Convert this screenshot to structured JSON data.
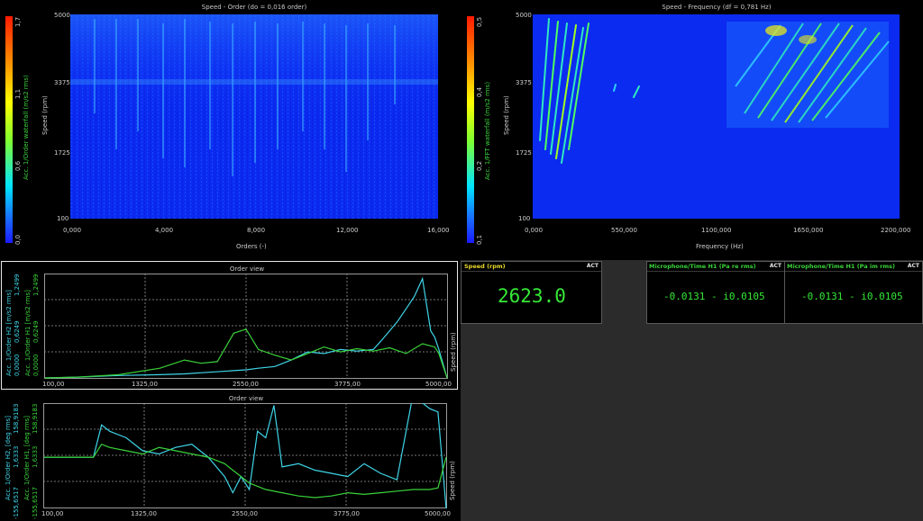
{
  "waterfall_order": {
    "title": "Speed - Order (do = 0,016 order)",
    "xlabel": "Orders (-)",
    "ylabel": "Speed (rpm)",
    "xticks": [
      "0,000",
      "4,000",
      "8,000",
      "12,000",
      "16,000"
    ],
    "yticks": [
      "5000",
      "3375",
      "1725",
      "100"
    ],
    "colorbar_label": "Acc. 1/Order waterfall (m/s2 rms)",
    "colorbar_ticks": [
      "1,7",
      "1,1",
      "0,6",
      "0,0"
    ],
    "colors": {
      "background": "#0b2bf0",
      "high": "#ff1a00"
    }
  },
  "waterfall_freq": {
    "title": "Speed - Frequency (df = 0,781 Hz)",
    "xlabel": "Frequency (Hz)",
    "ylabel": "Speed (rpm)",
    "xticks": [
      "0,000",
      "550,000",
      "1100,000",
      "1650,000",
      "2200,000"
    ],
    "yticks": [
      "5000",
      "3375",
      "1725",
      "100"
    ],
    "colorbar_label": "Acc. 1/FFT waterfall (m/s2 rms)",
    "colorbar_ticks": [
      "0,5",
      "0,4",
      "0,2",
      "0,1"
    ]
  },
  "order_view_1": {
    "title": "Order view",
    "xticks": [
      "100,00",
      "1325,00",
      "2550,00",
      "3775,00",
      "5000,00"
    ],
    "right_label": "Speed (rpm)",
    "axis_cyan": {
      "label": "Acc. 1/Order H2 [m/s2 rms]",
      "ticks": [
        "1,2499",
        "0,6249",
        "0,0000"
      ]
    },
    "axis_green": {
      "label": "Acc. 1/Order H1 [m/s2 rms]",
      "ticks": [
        "1,2499",
        "0,6249",
        "0,0000"
      ]
    }
  },
  "order_view_2": {
    "title": "Order view",
    "xticks": [
      "100,00",
      "1325,00",
      "2550,00",
      "3775,00",
      "5000,00"
    ],
    "right_label": "Speed (rpm)",
    "axis_cyan": {
      "label": "Acc. 1/Order H2, [deg rms]",
      "ticks": [
        "158,9183",
        "1,6333",
        "-155,6517"
      ]
    },
    "axis_green": {
      "label": "Acc. 1/Order H1, [deg rms]",
      "ticks": [
        "158,9183",
        "1,6333",
        "-155,6517"
      ]
    }
  },
  "speed_display": {
    "title": "Speed (rpm)",
    "badge": "ACT",
    "value": "2623.0"
  },
  "mic_re": {
    "title": "Microphone/Time H1 (Pa re rms)",
    "badge": "ACT",
    "value": "-0.0131 - i0.0105"
  },
  "mic_im": {
    "title": "Microphone/Time H1 (Pa im rms)",
    "badge": "ACT",
    "value": "-0.0131 - i0.0105"
  },
  "chart_data": [
    {
      "type": "heatmap",
      "title": "Speed - Order (do = 0,016 order)",
      "xlabel": "Orders (-)",
      "ylabel": "Speed (rpm)",
      "xlim": [
        0,
        16
      ],
      "ylim": [
        100,
        5000
      ],
      "colorbar": {
        "label": "Acc. 1/Order waterfall (m/s2 rms)",
        "range": [
          0.0,
          1.7
        ]
      },
      "bright_order_lines": [
        1,
        3,
        4,
        5,
        6,
        8,
        10,
        12,
        13
      ]
    },
    {
      "type": "heatmap",
      "title": "Speed - Frequency (df = 0,781 Hz)",
      "xlabel": "Frequency (Hz)",
      "ylabel": "Speed (rpm)",
      "xlim": [
        0,
        2200
      ],
      "ylim": [
        100,
        5000
      ],
      "colorbar": {
        "label": "Acc. 1/FFT waterfall (m/s2 rms)",
        "range": [
          0.1,
          0.5
        ]
      }
    },
    {
      "type": "line",
      "title": "Order view",
      "xlim": [
        100,
        5000
      ],
      "ylim": [
        0,
        1.2499
      ],
      "series": [
        {
          "name": "Acc. 1/Order H2 [m/s2 rms]",
          "color": "#3fd5e8",
          "x": [
            100,
            500,
            1000,
            1500,
            1800,
            2100,
            2400,
            2550,
            2700,
            2900,
            3100,
            3300,
            3500,
            3700,
            3900,
            4100,
            4200,
            4300,
            4400,
            4500,
            4600,
            4700,
            4800,
            4850,
            4900,
            5000
          ],
          "y": [
            0,
            0.01,
            0.03,
            0.04,
            0.05,
            0.07,
            0.09,
            0.1,
            0.12,
            0.14,
            0.22,
            0.32,
            0.3,
            0.35,
            0.33,
            0.35,
            0.46,
            0.58,
            0.7,
            0.85,
            1.0,
            1.22,
            0.58,
            0.5,
            0.35,
            0.0
          ]
        },
        {
          "name": "Acc. 1/Order H1 [m/s2 rms]",
          "color": "#3ad23a",
          "x": [
            100,
            500,
            1000,
            1500,
            1800,
            2000,
            2200,
            2400,
            2550,
            2700,
            2900,
            3100,
            3300,
            3500,
            3700,
            3900,
            4100,
            4300,
            4500,
            4700,
            4850,
            4900,
            5000
          ],
          "y": [
            0,
            0.01,
            0.04,
            0.12,
            0.22,
            0.18,
            0.2,
            0.55,
            0.6,
            0.35,
            0.28,
            0.22,
            0.3,
            0.38,
            0.32,
            0.36,
            0.33,
            0.37,
            0.3,
            0.42,
            0.38,
            0.3,
            0.0
          ]
        }
      ]
    },
    {
      "type": "line",
      "title": "Order view",
      "xlim": [
        100,
        5000
      ],
      "ylim": [
        -155.6517,
        158.9183
      ],
      "series": [
        {
          "name": "Acc. 1/Order H2, [deg rms]",
          "color": "#3fd5e8",
          "x": [
            100,
            700,
            800,
            900,
            1100,
            1300,
            1500,
            1700,
            1900,
            2100,
            2300,
            2400,
            2500,
            2600,
            2700,
            2800,
            2900,
            3000,
            3200,
            3400,
            3600,
            3800,
            4000,
            4200,
            4400,
            4600,
            4700,
            4800,
            4900,
            5000
          ],
          "y": [
            0,
            0,
            100,
            80,
            60,
            20,
            10,
            30,
            40,
            0,
            -60,
            -110,
            -60,
            -100,
            80,
            60,
            160,
            -30,
            -20,
            -40,
            -50,
            -60,
            -20,
            -50,
            -70,
            200,
            170,
            150,
            140,
            -160
          ]
        },
        {
          "name": "Acc. 1/Order H1, [deg rms]",
          "color": "#3ad23a",
          "x": [
            100,
            700,
            800,
            900,
            1100,
            1300,
            1500,
            1700,
            1900,
            2100,
            2300,
            2400,
            2500,
            2600,
            2800,
            3000,
            3200,
            3400,
            3600,
            3800,
            4000,
            4200,
            4400,
            4600,
            4800,
            4900,
            5000
          ],
          "y": [
            0,
            0,
            40,
            30,
            20,
            10,
            30,
            20,
            10,
            0,
            -20,
            -40,
            -60,
            -80,
            -100,
            -110,
            -120,
            -125,
            -120,
            -110,
            -115,
            -110,
            -105,
            -100,
            -100,
            -95,
            0
          ]
        }
      ]
    }
  ]
}
